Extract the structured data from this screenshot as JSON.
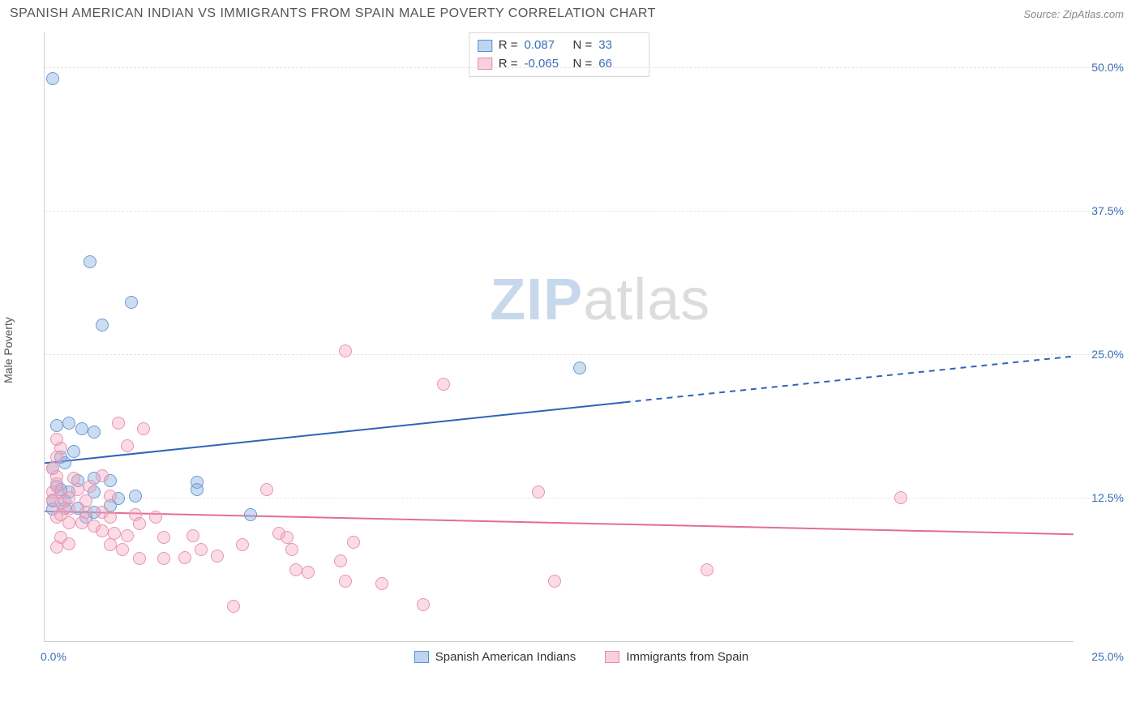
{
  "header": {
    "title": "SPANISH AMERICAN INDIAN VS IMMIGRANTS FROM SPAIN MALE POVERTY CORRELATION CHART",
    "source_prefix": "Source: ",
    "source_name": "ZipAtlas.com"
  },
  "watermark": {
    "part1": "ZIP",
    "part2": "atlas"
  },
  "y_axis_label": "Male Poverty",
  "chart": {
    "type": "scatter",
    "background_color": "#ffffff",
    "grid_color": "#e4e4e4",
    "axis_color": "#d0d0d0",
    "xlim": [
      0,
      25
    ],
    "ylim": [
      0,
      53
    ],
    "y_ticks": [
      {
        "value": 12.5,
        "label": "12.5%"
      },
      {
        "value": 25.0,
        "label": "25.0%"
      },
      {
        "value": 37.5,
        "label": "37.5%"
      },
      {
        "value": 50.0,
        "label": "50.0%"
      }
    ],
    "x_origin_label": "0.0%",
    "x_max_label": "25.0%",
    "tick_label_color": "#3b6fb6",
    "tick_label_fontsize": 14,
    "marker_radius": 8,
    "marker_border_width": 1.2,
    "line_width": 2,
    "stats_box": {
      "border_color": "#d8d8d8",
      "rows": [
        {
          "swatch": "blue",
          "r_label": "R =",
          "r_value": "0.087",
          "n_label": "N =",
          "n_value": "33"
        },
        {
          "swatch": "pink",
          "r_label": "R =",
          "r_value": "-0.065",
          "n_label": "N =",
          "n_value": "66"
        }
      ]
    },
    "bottom_legend": [
      {
        "swatch": "blue",
        "label": "Spanish American Indians"
      },
      {
        "swatch": "pink",
        "label": "Immigrants from Spain"
      }
    ],
    "series": [
      {
        "name": "Spanish American Indians",
        "color_fill": "rgba(130,170,220,0.40)",
        "color_stroke": "#6a9bd4",
        "trend": {
          "color": "#2f63b8",
          "solid": {
            "x1": 0,
            "y1": 15.5,
            "x2": 14.1,
            "y2": 20.8
          },
          "dashed": {
            "x1": 14.1,
            "y1": 20.8,
            "x2": 25,
            "y2": 24.8
          }
        },
        "points": [
          {
            "x": 0.2,
            "y": 49.0
          },
          {
            "x": 1.1,
            "y": 33.0
          },
          {
            "x": 1.4,
            "y": 27.5
          },
          {
            "x": 2.1,
            "y": 29.5
          },
          {
            "x": 13.0,
            "y": 23.8
          },
          {
            "x": 0.3,
            "y": 18.8
          },
          {
            "x": 0.6,
            "y": 19.0
          },
          {
            "x": 0.9,
            "y": 18.5
          },
          {
            "x": 1.2,
            "y": 18.2
          },
          {
            "x": 0.2,
            "y": 15.0
          },
          {
            "x": 0.5,
            "y": 15.5
          },
          {
            "x": 0.2,
            "y": 12.2
          },
          {
            "x": 0.5,
            "y": 12.2
          },
          {
            "x": 1.2,
            "y": 14.2
          },
          {
            "x": 1.6,
            "y": 14.0
          },
          {
            "x": 1.2,
            "y": 13.0
          },
          {
            "x": 1.8,
            "y": 12.4
          },
          {
            "x": 2.2,
            "y": 12.6
          },
          {
            "x": 0.5,
            "y": 11.6
          },
          {
            "x": 0.8,
            "y": 11.6
          },
          {
            "x": 1.6,
            "y": 11.8
          },
          {
            "x": 1.0,
            "y": 10.8
          },
          {
            "x": 0.4,
            "y": 13.2
          },
          {
            "x": 0.6,
            "y": 13.0
          },
          {
            "x": 0.3,
            "y": 13.5
          },
          {
            "x": 3.7,
            "y": 13.8
          },
          {
            "x": 3.7,
            "y": 13.2
          },
          {
            "x": 5.0,
            "y": 11.0
          },
          {
            "x": 0.2,
            "y": 11.5
          },
          {
            "x": 0.8,
            "y": 14.0
          },
          {
            "x": 1.2,
            "y": 11.2
          },
          {
            "x": 0.4,
            "y": 16.0
          },
          {
            "x": 0.7,
            "y": 16.5
          }
        ]
      },
      {
        "name": "Immigrants from Spain",
        "color_fill": "rgba(245,165,190,0.40)",
        "color_stroke": "#e895af",
        "trend": {
          "color": "#e26e94",
          "solid": {
            "x1": 0,
            "y1": 11.3,
            "x2": 25,
            "y2": 9.3
          },
          "dashed": null
        },
        "points": [
          {
            "x": 7.3,
            "y": 25.3
          },
          {
            "x": 9.7,
            "y": 22.4
          },
          {
            "x": 1.8,
            "y": 19.0
          },
          {
            "x": 2.4,
            "y": 18.5
          },
          {
            "x": 2.0,
            "y": 17.0
          },
          {
            "x": 0.3,
            "y": 17.6
          },
          {
            "x": 0.4,
            "y": 16.8
          },
          {
            "x": 0.3,
            "y": 16.0
          },
          {
            "x": 0.2,
            "y": 15.0
          },
          {
            "x": 0.3,
            "y": 14.3
          },
          {
            "x": 0.3,
            "y": 13.7
          },
          {
            "x": 0.2,
            "y": 13.0
          },
          {
            "x": 0.4,
            "y": 13.0
          },
          {
            "x": 0.2,
            "y": 12.3
          },
          {
            "x": 0.4,
            "y": 12.0
          },
          {
            "x": 0.6,
            "y": 12.5
          },
          {
            "x": 0.7,
            "y": 14.2
          },
          {
            "x": 1.0,
            "y": 12.2
          },
          {
            "x": 0.6,
            "y": 11.5
          },
          {
            "x": 0.8,
            "y": 13.2
          },
          {
            "x": 1.4,
            "y": 14.4
          },
          {
            "x": 1.6,
            "y": 12.6
          },
          {
            "x": 1.0,
            "y": 11.2
          },
          {
            "x": 1.4,
            "y": 11.2
          },
          {
            "x": 1.6,
            "y": 10.8
          },
          {
            "x": 2.2,
            "y": 11.0
          },
          {
            "x": 0.6,
            "y": 10.3
          },
          {
            "x": 0.9,
            "y": 10.3
          },
          {
            "x": 1.2,
            "y": 10.0
          },
          {
            "x": 1.4,
            "y": 9.6
          },
          {
            "x": 1.7,
            "y": 9.4
          },
          {
            "x": 2.0,
            "y": 9.2
          },
          {
            "x": 2.3,
            "y": 10.2
          },
          {
            "x": 2.7,
            "y": 10.8
          },
          {
            "x": 2.9,
            "y": 9.0
          },
          {
            "x": 1.6,
            "y": 8.4
          },
          {
            "x": 1.9,
            "y": 8.0
          },
          {
            "x": 0.4,
            "y": 9.0
          },
          {
            "x": 0.3,
            "y": 8.2
          },
          {
            "x": 0.6,
            "y": 8.5
          },
          {
            "x": 0.3,
            "y": 10.8
          },
          {
            "x": 2.3,
            "y": 7.2
          },
          {
            "x": 2.9,
            "y": 7.2
          },
          {
            "x": 3.4,
            "y": 7.3
          },
          {
            "x": 3.6,
            "y": 9.2
          },
          {
            "x": 3.8,
            "y": 8.0
          },
          {
            "x": 4.2,
            "y": 7.4
          },
          {
            "x": 4.8,
            "y": 8.4
          },
          {
            "x": 5.4,
            "y": 13.2
          },
          {
            "x": 5.7,
            "y": 9.4
          },
          {
            "x": 5.9,
            "y": 9.0
          },
          {
            "x": 6.0,
            "y": 8.0
          },
          {
            "x": 6.1,
            "y": 6.2
          },
          {
            "x": 6.4,
            "y": 6.0
          },
          {
            "x": 7.3,
            "y": 5.2
          },
          {
            "x": 7.5,
            "y": 8.6
          },
          {
            "x": 7.2,
            "y": 7.0
          },
          {
            "x": 8.2,
            "y": 5.0
          },
          {
            "x": 4.6,
            "y": 3.0
          },
          {
            "x": 9.2,
            "y": 3.2
          },
          {
            "x": 12.0,
            "y": 13.0
          },
          {
            "x": 12.4,
            "y": 5.2
          },
          {
            "x": 16.1,
            "y": 6.2
          },
          {
            "x": 20.8,
            "y": 12.5
          },
          {
            "x": 0.4,
            "y": 11.0
          },
          {
            "x": 1.1,
            "y": 13.5
          }
        ]
      }
    ]
  }
}
